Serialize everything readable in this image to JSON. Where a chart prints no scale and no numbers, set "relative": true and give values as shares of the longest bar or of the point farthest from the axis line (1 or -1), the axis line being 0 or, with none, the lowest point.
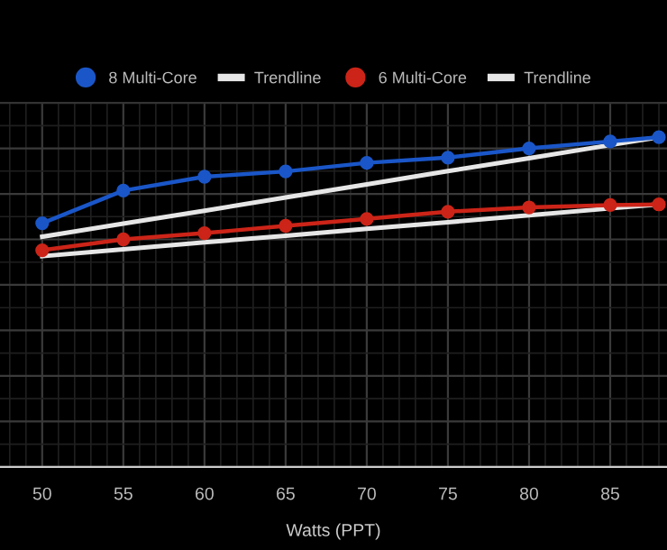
{
  "chart_data": {
    "type": "line",
    "relative": true,
    "xlabel": "Watts (PPT)",
    "x": [
      50,
      55,
      60,
      65,
      70,
      75,
      80,
      85,
      88
    ],
    "xlim": [
      47.4,
      88.5
    ],
    "xticks": [
      50,
      55,
      60,
      65,
      70,
      75,
      80,
      85
    ],
    "series": [
      {
        "name": "8 Multi-Core",
        "color": "#1a56c8",
        "marker": "circle",
        "values": [
          0.739,
          0.838,
          0.88,
          0.896,
          0.922,
          0.938,
          0.966,
          0.987,
          1.0
        ]
      },
      {
        "name": "Trendline",
        "color": "#e6e6e6",
        "marker": "none",
        "values": [
          0.698,
          0.738,
          0.777,
          0.817,
          0.857,
          0.897,
          0.936,
          0.976,
          1.0
        ]
      },
      {
        "name": "6 Multi-Core",
        "color": "#cc2418",
        "marker": "circle",
        "values": [
          0.657,
          0.69,
          0.709,
          0.731,
          0.752,
          0.774,
          0.787,
          0.794,
          0.796
        ]
      },
      {
        "name": "Trendline",
        "color": "#e6e6e6",
        "marker": "none",
        "values": [
          0.639,
          0.66,
          0.681,
          0.701,
          0.722,
          0.742,
          0.763,
          0.784,
          0.796
        ]
      }
    ],
    "grid": true,
    "legend": "top"
  }
}
